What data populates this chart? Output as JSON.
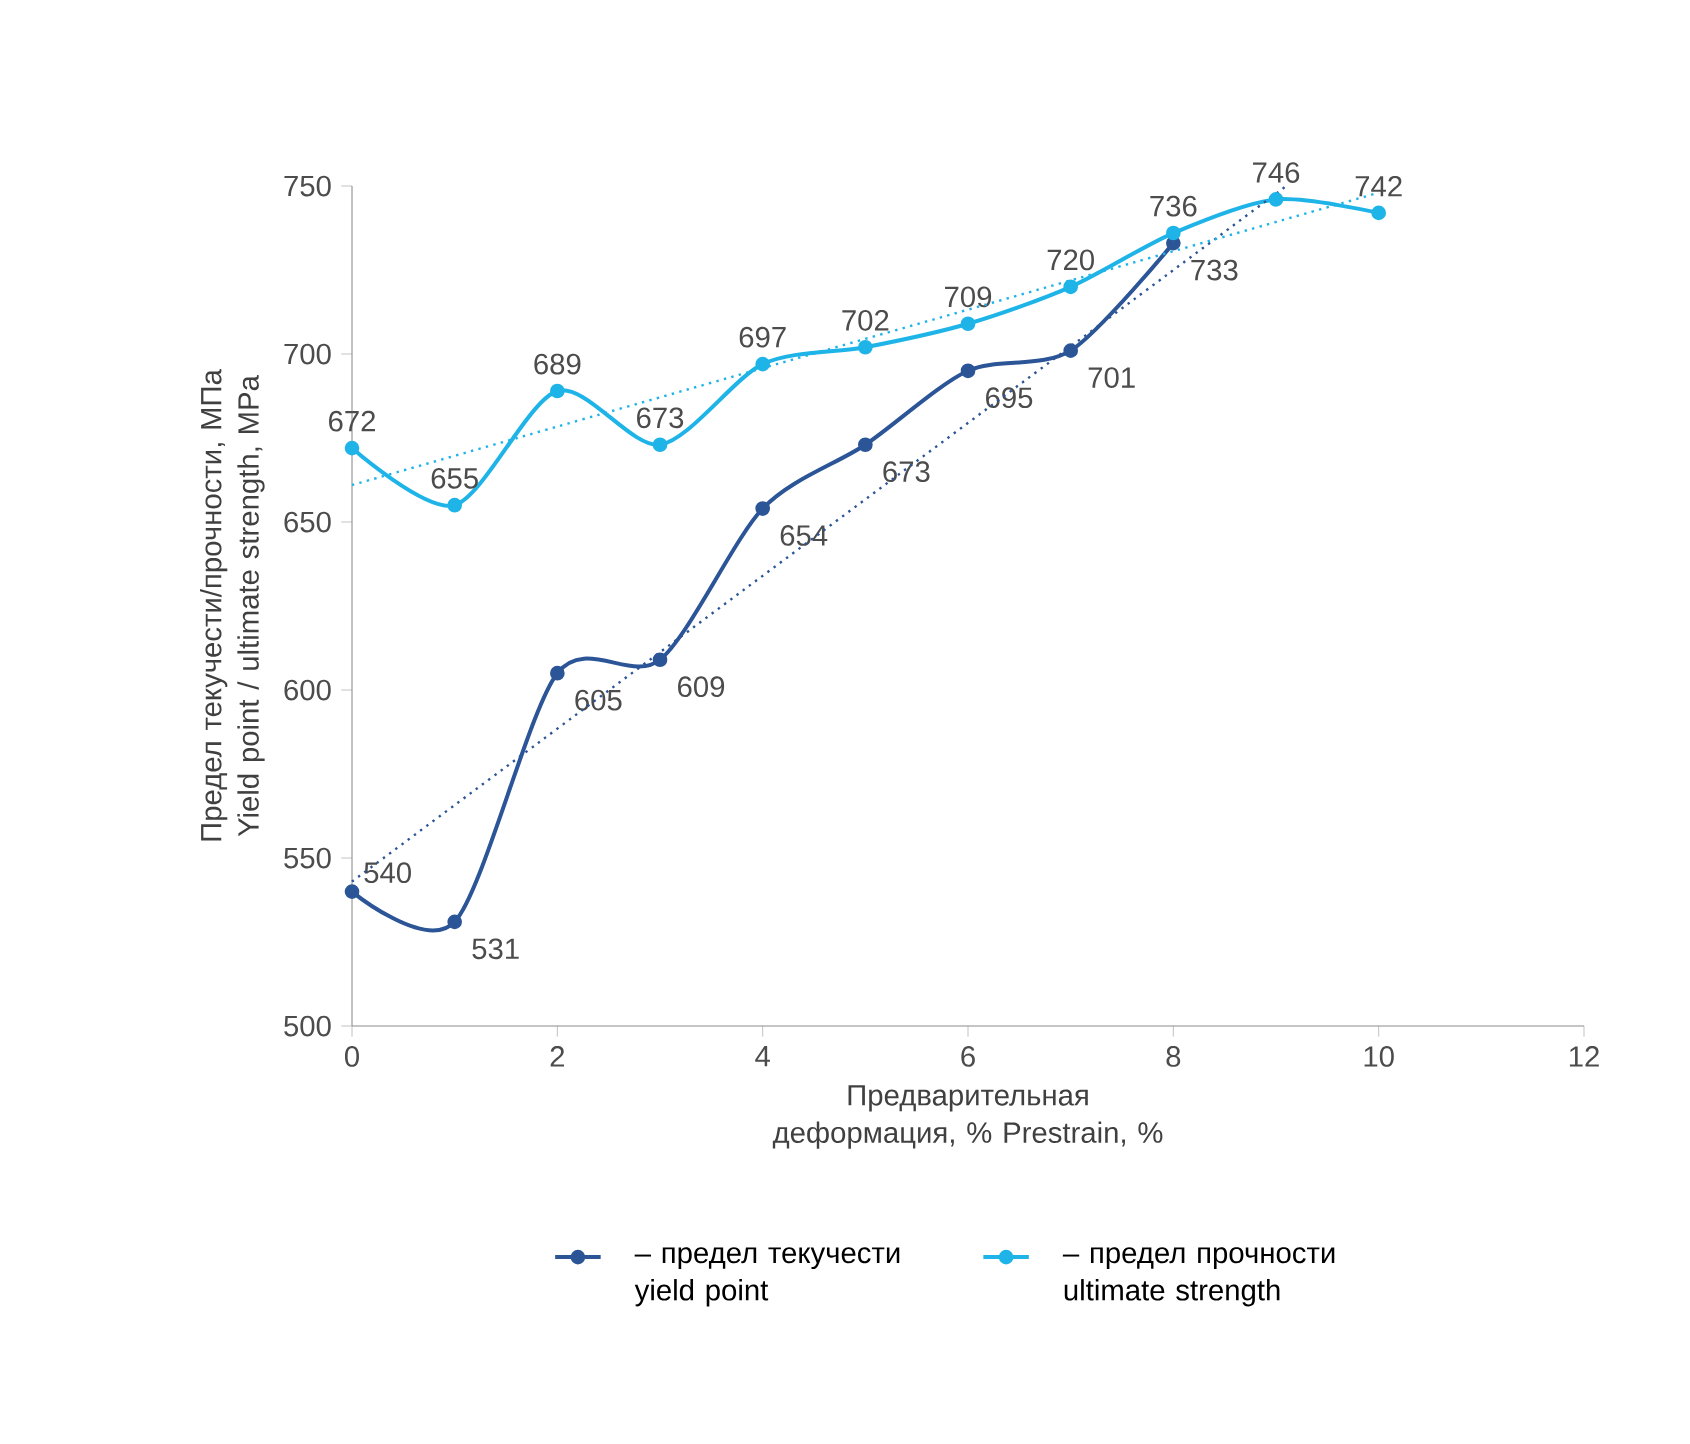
{
  "chart_data": {
    "type": "line",
    "xlabel": "Предварительная деформация, % Prestrain, %",
    "ylabel": "Предел текучести/прочности, МПа Yield point / ultimate strength, MPa",
    "xlim": [
      0,
      12
    ],
    "xticks": [
      0,
      2,
      4,
      6,
      8,
      10,
      12
    ],
    "ylim": [
      500,
      750
    ],
    "yticks": [
      500,
      550,
      600,
      650,
      700,
      750
    ],
    "grid": false,
    "legend": "bottom",
    "marker": "circle",
    "series": [
      {
        "name": "– предел текучести yield point",
        "color": "#2b5597",
        "x": [
          0,
          1,
          2,
          3,
          4,
          5,
          6,
          7,
          8
        ],
        "values": [
          540,
          531,
          605,
          609,
          654,
          673,
          695,
          701,
          733
        ],
        "value_labels": [
          "540",
          "531",
          "605",
          "609",
          "654",
          "673",
          "695",
          "701",
          "733"
        ]
      },
      {
        "name": "– предел прочности ultimate strength",
        "color": "#1fb4e8",
        "x": [
          0,
          1,
          2,
          3,
          4,
          5,
          6,
          7,
          8,
          9,
          10
        ],
        "values": [
          672,
          655,
          689,
          673,
          697,
          702,
          709,
          720,
          736,
          746,
          742
        ],
        "value_labels": [
          "672",
          "655",
          "689",
          "673",
          "697",
          "702",
          "709",
          "720",
          "736",
          "746",
          "742"
        ]
      },
      {
        "type": "line",
        "line_style": "dotted",
        "marker": "none",
        "color": "#2b5597",
        "x": [
          0,
          9.1
        ],
        "values": [
          543,
          750
        ]
      },
      {
        "type": "line",
        "line_style": "dotted",
        "marker": "none",
        "color": "#1fb4e8",
        "x": [
          0,
          10
        ],
        "values": [
          661,
          748
        ]
      }
    ]
  }
}
